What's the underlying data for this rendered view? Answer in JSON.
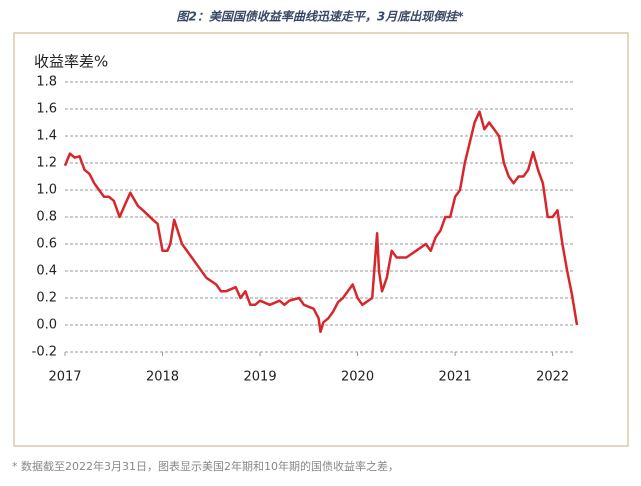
{
  "chart_data": {
    "type": "line",
    "title": "图2：美国国债收益率曲线迅速走平，3月底出现倒挂*",
    "y_label": "收益率差%",
    "note": "* 数据截至2022年3月31日，图表显示美国2年期和10年期的国债收益率之差，",
    "x": [
      2017.0,
      2017.05,
      2017.1,
      2017.15,
      2017.2,
      2017.25,
      2017.3,
      2017.35,
      2017.4,
      2017.45,
      2017.5,
      2017.56,
      2017.62,
      2017.67,
      2017.75,
      2017.8,
      2017.9,
      2017.95,
      2018.0,
      2018.05,
      2018.08,
      2018.12,
      2018.2,
      2018.3,
      2018.35,
      2018.45,
      2018.55,
      2018.6,
      2018.65,
      2018.75,
      2018.8,
      2018.85,
      2018.9,
      2018.95,
      2019.0,
      2019.1,
      2019.2,
      2019.25,
      2019.3,
      2019.4,
      2019.45,
      2019.55,
      2019.6,
      2019.62,
      2019.65,
      2019.7,
      2019.75,
      2019.8,
      2019.85,
      2019.9,
      2019.95,
      2020.0,
      2020.05,
      2020.15,
      2020.2,
      2020.22,
      2020.25,
      2020.3,
      2020.35,
      2020.4,
      2020.5,
      2020.6,
      2020.7,
      2020.75,
      2020.8,
      2020.85,
      2020.9,
      2020.95,
      2021.0,
      2021.05,
      2021.1,
      2021.15,
      2021.2,
      2021.25,
      2021.3,
      2021.35,
      2021.4,
      2021.45,
      2021.5,
      2021.55,
      2021.6,
      2021.65,
      2021.7,
      2021.75,
      2021.8,
      2021.85,
      2021.9,
      2021.95,
      2022.0,
      2022.05,
      2022.1,
      2022.15,
      2022.2,
      2022.25
    ],
    "series": [
      {
        "name": "收益率差",
        "color": "#d7262c",
        "values": [
          1.18,
          1.27,
          1.24,
          1.25,
          1.15,
          1.12,
          1.05,
          1.0,
          0.95,
          0.95,
          0.92,
          0.8,
          0.9,
          0.98,
          0.88,
          0.85,
          0.78,
          0.75,
          0.55,
          0.55,
          0.6,
          0.78,
          0.6,
          0.5,
          0.45,
          0.35,
          0.3,
          0.25,
          0.25,
          0.28,
          0.2,
          0.25,
          0.15,
          0.15,
          0.18,
          0.15,
          0.18,
          0.15,
          0.18,
          0.2,
          0.15,
          0.12,
          0.05,
          -0.05,
          0.02,
          0.05,
          0.1,
          0.17,
          0.2,
          0.25,
          0.3,
          0.2,
          0.15,
          0.2,
          0.68,
          0.4,
          0.25,
          0.35,
          0.55,
          0.5,
          0.5,
          0.55,
          0.6,
          0.55,
          0.65,
          0.7,
          0.8,
          0.8,
          0.95,
          1.0,
          1.2,
          1.35,
          1.5,
          1.58,
          1.45,
          1.5,
          1.45,
          1.4,
          1.2,
          1.1,
          1.05,
          1.1,
          1.1,
          1.15,
          1.28,
          1.15,
          1.05,
          0.8,
          0.8,
          0.85,
          0.6,
          0.4,
          0.22,
          0.0
        ]
      }
    ],
    "xlim": [
      2017,
      2022.25
    ],
    "xticks": [
      2017,
      2018,
      2019,
      2020,
      2021,
      2022
    ],
    "ylim": [
      -0.2,
      1.8
    ],
    "yticks": [
      -0.2,
      {
        "value": 0,
        "label": "0.0"
      },
      0.2,
      0.4,
      0.6,
      0.8,
      {
        "value": 1,
        "label": "1.0"
      },
      1.2,
      1.4,
      1.6,
      1.8
    ],
    "grid": true
  }
}
